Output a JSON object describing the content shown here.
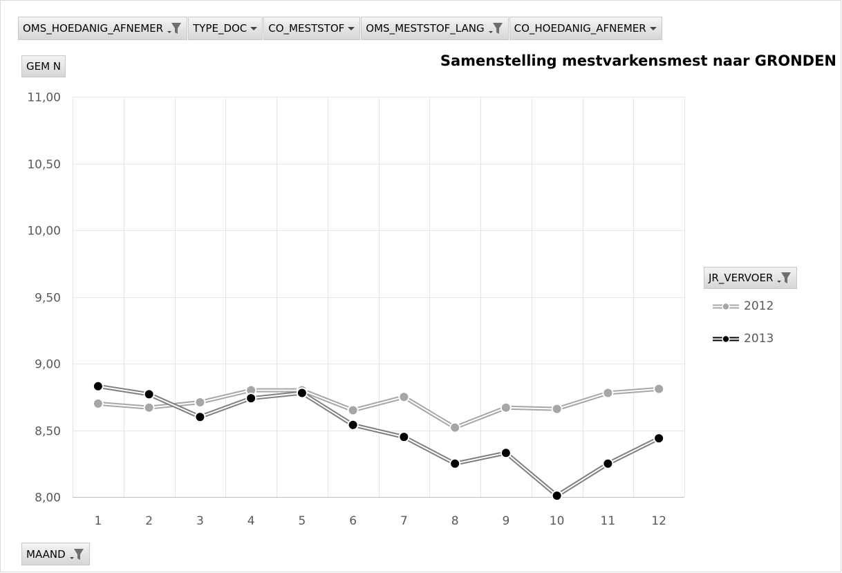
{
  "filters": [
    {
      "label": "OMS_HOEDANIG_AFNEMER",
      "icon": "filter-icon"
    },
    {
      "label": "TYPE_DOC",
      "icon": "dropdown-icon"
    },
    {
      "label": "CO_MESTSTOF",
      "icon": "dropdown-icon"
    },
    {
      "label": "OMS_MESTSTOF_LANG",
      "icon": "filter-icon"
    },
    {
      "label": "CO_HOEDANIG_AFNEMER",
      "icon": "dropdown-icon"
    }
  ],
  "value_field": "GEM N",
  "axis_field": "MAAND",
  "legend_field": "JR_VERVOER",
  "colors": {
    "s2012": "#a6a6a6",
    "s2013": "#000000",
    "line2013": "#7f7f7f",
    "grid": "#e6e6e6"
  },
  "chart_data": {
    "type": "line",
    "title": "Samenstelling mestvarkensmest naar GRONDEN",
    "xlabel": "",
    "ylabel": "",
    "categories": [
      "1",
      "2",
      "3",
      "4",
      "5",
      "6",
      "7",
      "8",
      "9",
      "10",
      "11",
      "12"
    ],
    "ylim": [
      8.0,
      11.0
    ],
    "yticks": [
      "8,00",
      "8,50",
      "9,00",
      "9,50",
      "10,00",
      "10,50",
      "11,00"
    ],
    "ytick_values": [
      8.0,
      8.5,
      9.0,
      9.5,
      10.0,
      10.5,
      11.0
    ],
    "grid": true,
    "legend": "right",
    "series": [
      {
        "name": "2012",
        "values": [
          8.7,
          8.67,
          8.71,
          8.8,
          8.8,
          8.65,
          8.75,
          8.52,
          8.67,
          8.66,
          8.78,
          8.81
        ]
      },
      {
        "name": "2013",
        "values": [
          8.83,
          8.77,
          8.6,
          8.74,
          8.78,
          8.54,
          8.45,
          8.25,
          8.33,
          8.01,
          8.25,
          8.44
        ]
      }
    ]
  }
}
